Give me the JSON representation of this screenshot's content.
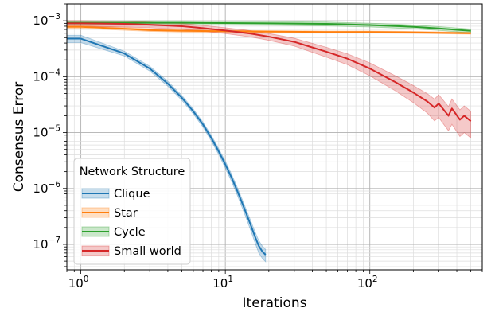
{
  "chart_data": {
    "type": "line",
    "title": "",
    "xlabel": "Iterations",
    "ylabel": "Consensus Error",
    "xscale": "log",
    "yscale": "log",
    "xlim": [
      0.8,
      600
    ],
    "ylim": [
      3.5e-08,
      0.002
    ],
    "grid": "major and minor",
    "legend": {
      "title": "Network Structure",
      "placement": "bottom-left"
    },
    "x_ticks": [
      {
        "value": 1,
        "label": "10",
        "exp": "0"
      },
      {
        "value": 10,
        "label": "10",
        "exp": "1"
      },
      {
        "value": 100,
        "label": "10",
        "exp": "2"
      }
    ],
    "y_ticks": [
      {
        "value": 1e-07,
        "label": "10",
        "exp": "−7"
      },
      {
        "value": 1e-06,
        "label": "10",
        "exp": "−6"
      },
      {
        "value": 1e-05,
        "label": "10",
        "exp": "−5"
      },
      {
        "value": 0.0001,
        "label": "10",
        "exp": "−4"
      },
      {
        "value": 0.001,
        "label": "10",
        "exp": "−3"
      }
    ],
    "series": [
      {
        "name": "Clique",
        "color": "#1f77b4",
        "x": [
          0.8,
          1,
          2,
          3,
          4,
          5,
          6,
          7,
          8,
          9,
          10,
          11,
          12,
          13,
          14,
          15,
          16,
          17,
          18,
          19
        ],
        "y": [
          0.00048,
          0.00048,
          0.00026,
          0.00014,
          7.5e-05,
          4.2e-05,
          2.4e-05,
          1.4e-05,
          8e-06,
          4.6e-06,
          2.7e-06,
          1.6e-06,
          9.5e-07,
          5.7e-07,
          3.5e-07,
          2.2e-07,
          1.4e-07,
          9.5e-08,
          7.5e-08,
          6.5e-08
        ],
        "band": [
          0.15,
          0.15,
          0.1,
          0.1,
          0.1,
          0.1,
          0.1,
          0.1,
          0.12,
          0.12,
          0.14,
          0.15,
          0.16,
          0.17,
          0.18,
          0.2,
          0.22,
          0.25,
          0.25,
          0.25
        ]
      },
      {
        "name": "Star",
        "color": "#ff7f0e",
        "x": [
          0.8,
          1,
          2,
          3,
          5,
          10,
          20,
          50,
          100,
          200,
          500
        ],
        "y": [
          0.00078,
          0.00078,
          0.00072,
          0.00068,
          0.00066,
          0.00065,
          0.00064,
          0.00063,
          0.00063,
          0.00062,
          0.0006
        ],
        "band": [
          0.06,
          0.06,
          0.06,
          0.05,
          0.05,
          0.04,
          0.04,
          0.04,
          0.04,
          0.04,
          0.04
        ]
      },
      {
        "name": "Cycle",
        "color": "#2ca02c",
        "x": [
          0.8,
          1,
          2,
          5,
          10,
          20,
          50,
          100,
          200,
          300,
          500
        ],
        "y": [
          0.00092,
          0.00092,
          0.00092,
          0.00092,
          0.00091,
          0.0009,
          0.00088,
          0.00084,
          0.00078,
          0.00073,
          0.00066
        ],
        "band": [
          0.08,
          0.08,
          0.08,
          0.08,
          0.08,
          0.08,
          0.08,
          0.08,
          0.08,
          0.08,
          0.08
        ]
      },
      {
        "name": "Small world",
        "color": "#d62728",
        "x": [
          0.8,
          1,
          2,
          3,
          5,
          7,
          10,
          15,
          20,
          30,
          50,
          70,
          100,
          150,
          200,
          250,
          280,
          300,
          350,
          370,
          420,
          450,
          500
        ],
        "y": [
          0.0009,
          0.0009,
          0.00088,
          0.00085,
          0.0008,
          0.00074,
          0.00067,
          0.00059,
          0.00052,
          0.00042,
          0.00028,
          0.00021,
          0.00014,
          8e-05,
          5.2e-05,
          3.6e-05,
          2.8e-05,
          3.3e-05,
          2e-05,
          2.7e-05,
          1.7e-05,
          2e-05,
          1.6e-05
        ],
        "band": [
          0.12,
          0.12,
          0.12,
          0.12,
          0.12,
          0.12,
          0.12,
          0.13,
          0.14,
          0.16,
          0.2,
          0.22,
          0.26,
          0.3,
          0.34,
          0.38,
          0.42,
          0.44,
          0.46,
          0.48,
          0.5,
          0.5,
          0.5
        ]
      }
    ]
  }
}
